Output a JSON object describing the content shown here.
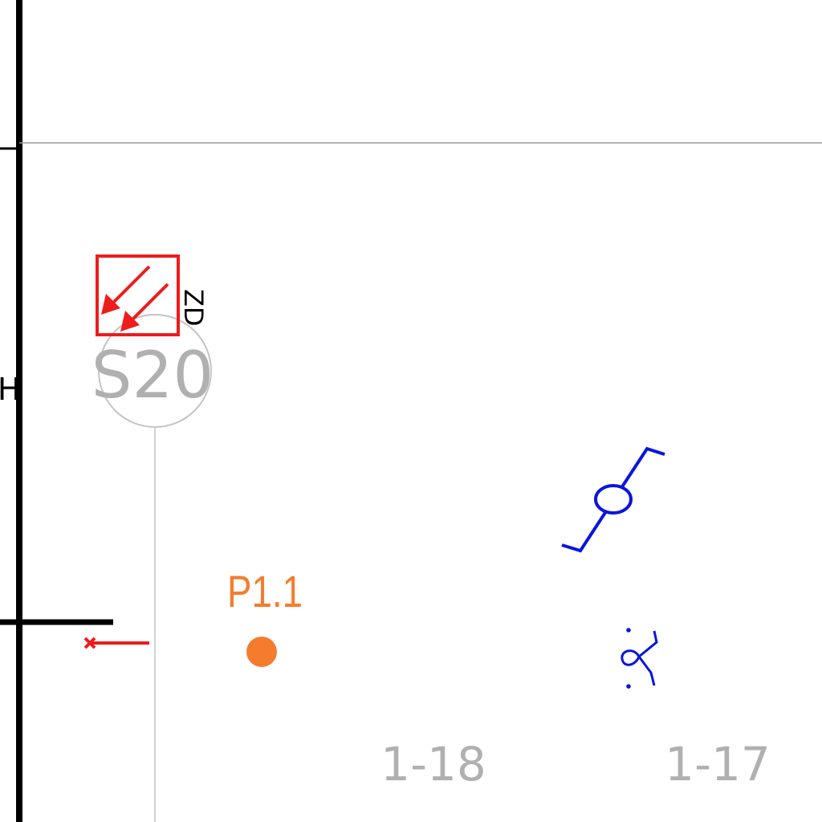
{
  "drawing": {
    "grid_bubble": {
      "label": "S20",
      "color": "#b0b0b0"
    },
    "grid_labels": [
      {
        "label": "1-18",
        "color": "#a8a8a8"
      },
      {
        "label": "1-17",
        "color": "#a8a8a8"
      }
    ],
    "smoke_damper": {
      "label": "ZD",
      "color": "#ee1c1c"
    },
    "point": {
      "label": "P1.1",
      "color": "#f57c2c"
    },
    "edge_letter": "H",
    "symbol_color": "#0a14e0",
    "wall_color": "#000000",
    "grid_line_color": "#bdbdbd"
  }
}
